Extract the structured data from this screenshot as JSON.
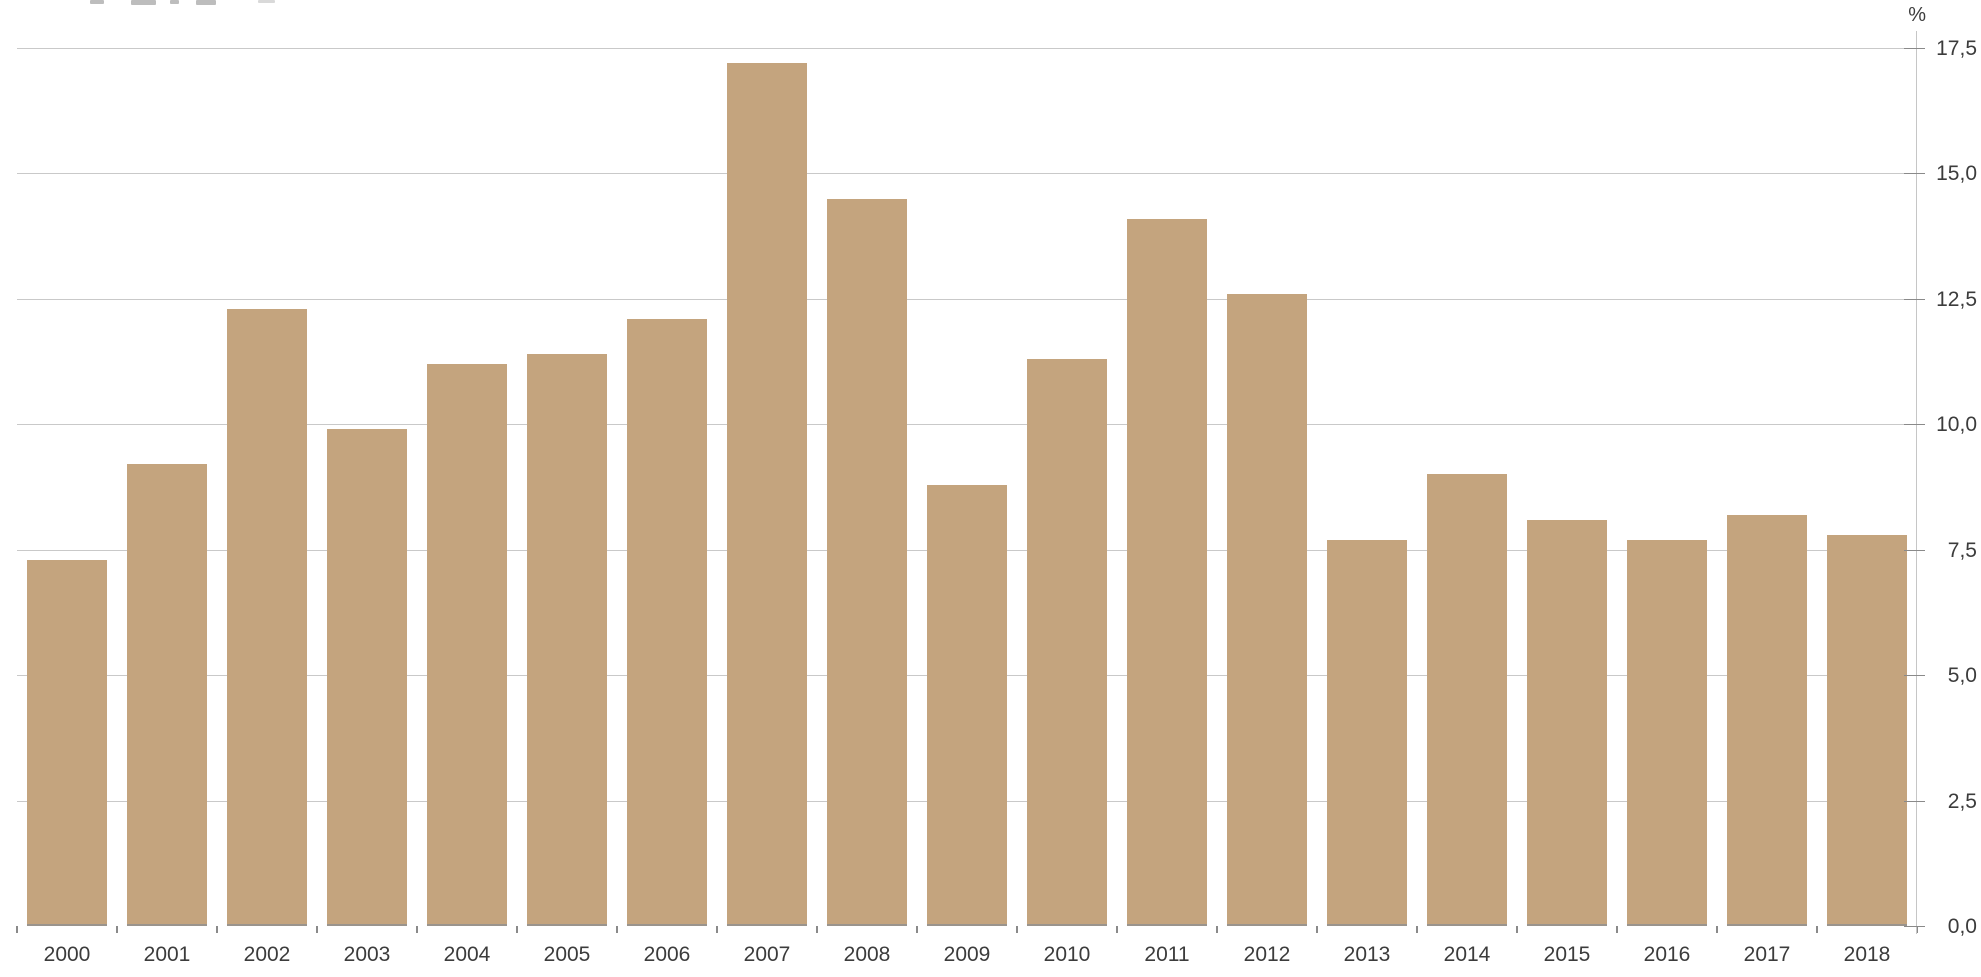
{
  "chart": {
    "bar_color": "#C4A47E",
    "bar_baseline_edge_color": "#9a948d",
    "grid_color": "#C9C9C9",
    "axis_line_color": "#C6C6C6",
    "tick_color": "#8A8A8A",
    "text_color": "#3C3C3C",
    "remnant_color_dark": "#BDBDBD",
    "remnant_color_light": "#D9D9D9"
  },
  "chart_data": {
    "type": "bar",
    "title": "",
    "categories": [
      "2000",
      "2001",
      "2002",
      "2003",
      "2004",
      "2005",
      "2006",
      "2007",
      "2008",
      "2009",
      "2010",
      "2011",
      "2012",
      "2013",
      "2014",
      "2015",
      "2016",
      "2017",
      "2018"
    ],
    "values": [
      7.3,
      9.2,
      12.3,
      9.9,
      11.2,
      11.4,
      12.1,
      17.2,
      14.5,
      8.8,
      11.3,
      14.1,
      12.6,
      7.7,
      9.0,
      8.1,
      7.7,
      8.2,
      7.8
    ],
    "xlabel": "",
    "ylabel": "%",
    "ylim": [
      0,
      17.5
    ],
    "y_tick_values": [
      0,
      2.5,
      5,
      7.5,
      10,
      12.5,
      15,
      17.5
    ],
    "y_tick_labels": [
      "0,0",
      "2,5",
      "5,0",
      "7,5",
      "10,0",
      "12,5",
      "15,0",
      "17,5"
    ],
    "decimal_separator": ",",
    "grid": true,
    "gridlines": "horizontal",
    "legend_position": "none",
    "y_axis_side": "right"
  }
}
